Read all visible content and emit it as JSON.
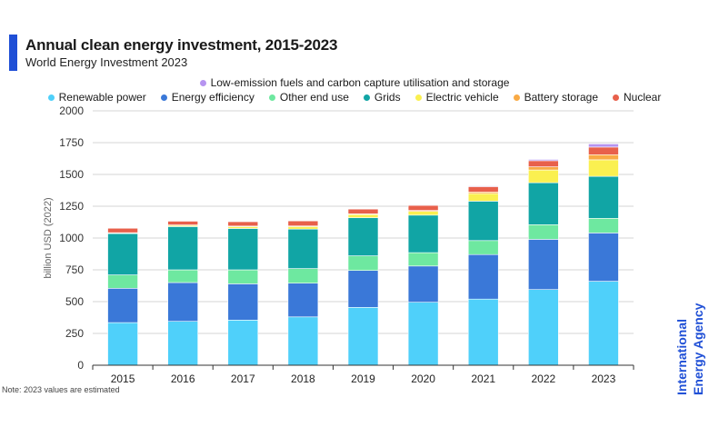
{
  "header": {
    "title": "Annual clean energy investment, 2015-2023",
    "subtitle": "World Energy Investment 2023"
  },
  "note": "Note: 2023 values are estimated",
  "logo": {
    "line1": "International",
    "line2": "Energy Agency",
    "color": "#1f4fd6"
  },
  "chart_data": {
    "type": "bar",
    "stacked": true,
    "title": "Annual clean energy investment, 2015-2023",
    "subtitle": "World Energy Investment 2023",
    "xlabel": "",
    "ylabel": "billion USD (2022)",
    "ylim": [
      0,
      2000
    ],
    "yticks": [
      0,
      250,
      500,
      750,
      1000,
      1250,
      1500,
      1750,
      2000
    ],
    "grid": true,
    "legend_position": "top",
    "categories": [
      "2015",
      "2016",
      "2017",
      "2018",
      "2019",
      "2020",
      "2021",
      "2022",
      "2023"
    ],
    "series": [
      {
        "name": "Renewable power",
        "color": "#4fd0fa",
        "values": [
          335,
          345,
          355,
          380,
          455,
          495,
          520,
          595,
          660
        ]
      },
      {
        "name": "Energy efficiency",
        "color": "#3a78d8",
        "values": [
          270,
          305,
          285,
          265,
          290,
          285,
          350,
          395,
          380
        ]
      },
      {
        "name": "Other end use",
        "color": "#6ee8a0",
        "values": [
          105,
          100,
          110,
          115,
          115,
          105,
          110,
          115,
          115
        ]
      },
      {
        "name": "Grids",
        "color": "#11a5a5",
        "values": [
          325,
          340,
          325,
          310,
          300,
          295,
          310,
          330,
          330
        ]
      },
      {
        "name": "Electric vehicle",
        "color": "#faf050",
        "values": [
          5,
          10,
          15,
          20,
          25,
          30,
          60,
          100,
          130
        ]
      },
      {
        "name": "Battery storage",
        "color": "#f9aa45",
        "values": [
          2,
          3,
          4,
          5,
          5,
          7,
          12,
          25,
          40
        ]
      },
      {
        "name": "Nuclear",
        "color": "#e8604b",
        "values": [
          35,
          30,
          35,
          40,
          38,
          40,
          42,
          48,
          60
        ]
      },
      {
        "name": "Low-emission fuels and carbon capture utilisation and storage",
        "color": "#b694f0",
        "values": [
          3,
          3,
          4,
          4,
          4,
          5,
          6,
          10,
          25
        ]
      }
    ]
  }
}
